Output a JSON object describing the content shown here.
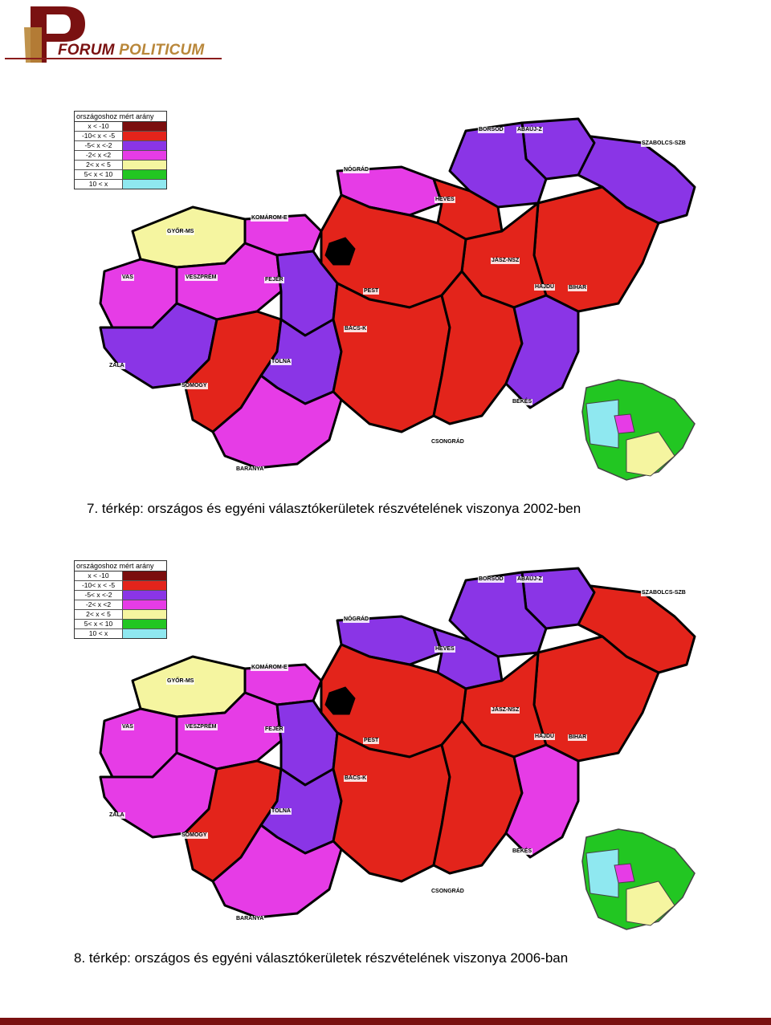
{
  "header": {
    "logo_forum": "FORUM",
    "logo_politicum": "POLITICUM",
    "brand_color": "#7a1111",
    "accent_color": "#b9873a"
  },
  "legend": {
    "title": "országoshoz mért arány",
    "items": [
      {
        "label": "x < -10",
        "color": "#7b0e0e"
      },
      {
        "label": "-10< x < -5",
        "color": "#e3241b"
      },
      {
        "label": "-5< x <-2",
        "color": "#8a35e6"
      },
      {
        "label": "-2< x <2",
        "color": "#e63ce6"
      },
      {
        "label": "2< x < 5",
        "color": "#f5f5a0"
      },
      {
        "label": "5< x < 10",
        "color": "#22c622"
      },
      {
        "label": "10 < x",
        "color": "#8fe8f0"
      }
    ]
  },
  "region_labels": {
    "borsod": "BORSOD",
    "abauj": "ABAÚJ-Z",
    "szabolcs": "SZABOLCS-SZB",
    "nograd": "NÓGRÁD",
    "heves": "HEVES",
    "komarom": "KOMÁROM-E",
    "gyor": "GYŐR-MS",
    "jasz": "JÁSZ-NSZ",
    "vas": "VAS",
    "veszprem": "VESZPRÉM",
    "fejer": "FEJÉR",
    "pest": "PEST",
    "hajdu": "HAJDÚ",
    "bihar": "BIHAR",
    "bacs": "BÁCS-K",
    "zala": "ZALA",
    "tolna": "TOLNA",
    "somogy": "SOMOGY",
    "bekes": "BÉKÉS",
    "csongrad": "CSONGRÁD",
    "baranya": "BARANYA"
  },
  "maps": [
    {
      "caption": "7. térkép: országos és egyéni választókerületek részvételének viszonya 2002-ben",
      "region_colors": {
        "szabolcs": "#8a35e6",
        "borsod": "#8a35e6",
        "abauj": "#8a35e6",
        "nograd": "#e63ce6",
        "heves": "#e3241b",
        "hajdu_bihar": "#e3241b",
        "jasz": "#e3241b",
        "pest": "#e3241b",
        "komarom": "#e63ce6",
        "gyor": "#f5f5a0",
        "vas": "#e63ce6",
        "veszprem": "#e63ce6",
        "fejer": "#8a35e6",
        "zala": "#8a35e6",
        "somogy": "#e3241b",
        "tolna": "#8a35e6",
        "bacs": "#e3241b",
        "csongrad": "#e3241b",
        "bekes": "#8a35e6",
        "baranya": "#e63ce6"
      }
    },
    {
      "caption": "8. térkép: országos és egyéni választókerületek részvételének viszonya 2006-ban",
      "region_colors": {
        "szabolcs": "#e3241b",
        "borsod": "#8a35e6",
        "abauj": "#8a35e6",
        "nograd": "#8a35e6",
        "heves": "#8a35e6",
        "hajdu_bihar": "#e3241b",
        "jasz": "#e3241b",
        "pest": "#e3241b",
        "komarom": "#e63ce6",
        "gyor": "#f5f5a0",
        "vas": "#e63ce6",
        "veszprem": "#e63ce6",
        "fejer": "#8a35e6",
        "zala": "#e63ce6",
        "somogy": "#e3241b",
        "tolna": "#8a35e6",
        "bacs": "#e3241b",
        "csongrad": "#e3241b",
        "bekes": "#e63ce6",
        "baranya": "#e63ce6"
      }
    }
  ]
}
